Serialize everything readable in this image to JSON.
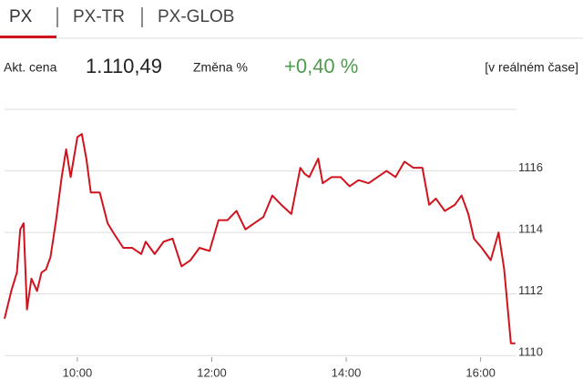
{
  "tabs": [
    "PX",
    "PX-TR",
    "PX-GLOB"
  ],
  "quote": {
    "price_label": "Akt. cena",
    "price": "1.110,49",
    "change_label": "Změna %",
    "change": "+0,40 %",
    "mode": "[v reálném čase]"
  },
  "chart_data": {
    "type": "line",
    "color": "#d0141e",
    "grid": true,
    "x": [
      535,
      541,
      546,
      549,
      552,
      555,
      559,
      564,
      568,
      572,
      576,
      581,
      586,
      590,
      594,
      600,
      604,
      608,
      612,
      620,
      627,
      632,
      641,
      649,
      657,
      661,
      669,
      677,
      685,
      693,
      701,
      709,
      718,
      726,
      734,
      742,
      750,
      758,
      766,
      774,
      782,
      791,
      799,
      803,
      807,
      815,
      819,
      827,
      835,
      843,
      851,
      860,
      868,
      876,
      884,
      892,
      900,
      908,
      914,
      920,
      928,
      937,
      943,
      949,
      954,
      961,
      969,
      976,
      981,
      987,
      991
    ],
    "values": [
      1111.2,
      1112.1,
      1112.7,
      1114.1,
      1114.3,
      1111.5,
      1112.5,
      1112.1,
      1112.7,
      1112.8,
      1113.2,
      1114.4,
      1115.8,
      1116.7,
      1115.8,
      1117.1,
      1117.2,
      1116.4,
      1115.3,
      1115.3,
      1114.3,
      1114.0,
      1113.5,
      1113.5,
      1113.3,
      1113.7,
      1113.3,
      1113.7,
      1113.8,
      1112.9,
      1113.1,
      1113.5,
      1113.4,
      1114.4,
      1114.4,
      1114.7,
      1114.1,
      1114.3,
      1114.5,
      1115.2,
      1114.9,
      1114.6,
      1116.1,
      1115.9,
      1115.8,
      1116.4,
      1115.6,
      1115.8,
      1115.8,
      1115.5,
      1115.7,
      1115.6,
      1115.8,
      1116.0,
      1115.8,
      1116.3,
      1116.1,
      1116.1,
      1114.9,
      1115.1,
      1114.7,
      1114.9,
      1115.2,
      1114.6,
      1113.8,
      1113.5,
      1113.1,
      1114.0,
      1112.8,
      1110.4,
      1110.4
    ],
    "xlim": [
      535,
      992
    ],
    "xticks": [
      {
        "value": 600,
        "label": "10:00"
      },
      {
        "value": 720,
        "label": "12:00"
      },
      {
        "value": 840,
        "label": "14:00"
      },
      {
        "value": 960,
        "label": "16:00"
      }
    ],
    "ylim": [
      1109.8,
      1118
    ],
    "yticks": [
      1110,
      1112,
      1114,
      1116
    ]
  }
}
